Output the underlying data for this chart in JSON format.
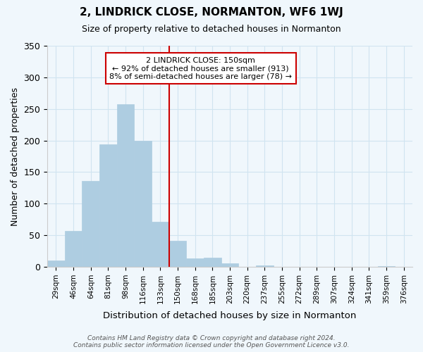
{
  "title": "2, LINDRICK CLOSE, NORMANTON, WF6 1WJ",
  "subtitle": "Size of property relative to detached houses in Normanton",
  "xlabel": "Distribution of detached houses by size in Normanton",
  "ylabel": "Number of detached properties",
  "bar_color": "#aecde1",
  "grid_color": "#d0e4f0",
  "background_color": "#f0f7fc",
  "bins": [
    "29sqm",
    "46sqm",
    "64sqm",
    "81sqm",
    "98sqm",
    "116sqm",
    "133sqm",
    "150sqm",
    "168sqm",
    "185sqm",
    "203sqm",
    "220sqm",
    "237sqm",
    "255sqm",
    "272sqm",
    "289sqm",
    "307sqm",
    "324sqm",
    "341sqm",
    "359sqm",
    "376sqm"
  ],
  "values": [
    10,
    57,
    136,
    194,
    258,
    200,
    71,
    41,
    13,
    15,
    6,
    0,
    2,
    0,
    0,
    0,
    0,
    0,
    0,
    1,
    0
  ],
  "property_label": "2 LINDRICK CLOSE: 150sqm",
  "annotation_line1": "← 92% of detached houses are smaller (913)",
  "annotation_line2": "8% of semi-detached houses are larger (78) →",
  "vline_color": "#cc0000",
  "vline_index": 7,
  "ylim": [
    0,
    350
  ],
  "yticks": [
    0,
    50,
    100,
    150,
    200,
    250,
    300,
    350
  ],
  "footer1": "Contains HM Land Registry data © Crown copyright and database right 2024.",
  "footer2": "Contains public sector information licensed under the Open Government Licence v3.0.",
  "annotation_box_color": "#ffffff",
  "annotation_box_edge": "#cc0000"
}
